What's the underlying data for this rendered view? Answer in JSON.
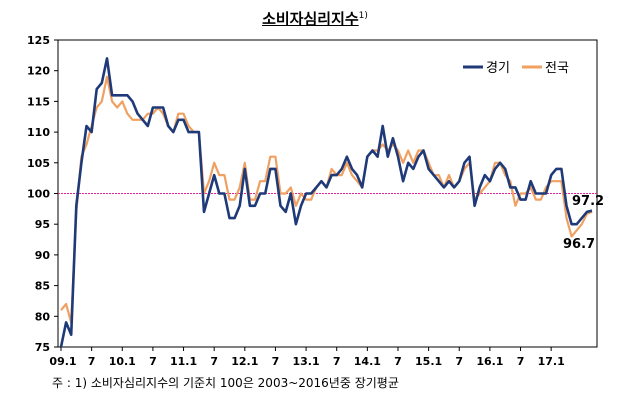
{
  "title": "소비자심리지수",
  "title_sup": "1)",
  "note": "주 : 1) 소비자심리지수의 기준치 100은 2003~2016년중 장기평균",
  "chart_data": {
    "type": "line",
    "title": "소비자심리지수",
    "xlabel": "",
    "ylabel": "",
    "ylim": [
      75,
      125
    ],
    "yticks": [
      75,
      80,
      85,
      90,
      95,
      100,
      105,
      110,
      115,
      120,
      125
    ],
    "xtick_labels": [
      "09.1",
      "7",
      "10.1",
      "7",
      "11.1",
      "7",
      "12.1",
      "7",
      "13.1",
      "7",
      "14.1",
      "7",
      "15.1",
      "7",
      "16.1",
      "7",
      "17.1"
    ],
    "x_start": "2009.01",
    "x_end": "2017.05",
    "reference_line": 100,
    "legend_position": "top-right",
    "annotations": [
      "97.2",
      "96.7"
    ],
    "series": [
      {
        "name": "경기",
        "color": "#1f3a78",
        "values": [
          75,
          79,
          77,
          98,
          105,
          111,
          110,
          117,
          118,
          122,
          116,
          116,
          116,
          116,
          115,
          113,
          112,
          111,
          114,
          114,
          114,
          111,
          110,
          112,
          112,
          110,
          110,
          110,
          97,
          100,
          103,
          100,
          100,
          96,
          96,
          98,
          104,
          98,
          98,
          100,
          100,
          104,
          104,
          98,
          97,
          100,
          95,
          98,
          100,
          100,
          101,
          102,
          101,
          103,
          103,
          104,
          106,
          104,
          103,
          101,
          106,
          107,
          106,
          111,
          106,
          109,
          106,
          102,
          105,
          104,
          106,
          107,
          104,
          103,
          102,
          101,
          102,
          101,
          102,
          105,
          106,
          98,
          101,
          103,
          102,
          104,
          105,
          104,
          101,
          101,
          99,
          99,
          102,
          100,
          100,
          100,
          103,
          104,
          104,
          98,
          95,
          95,
          96,
          97,
          97.2
        ]
      },
      {
        "name": "전국",
        "color": "#f0a060",
        "values": [
          81,
          82,
          79,
          97,
          106,
          108,
          111,
          114,
          115,
          119,
          115,
          114,
          115,
          113,
          112,
          112,
          112,
          113,
          113,
          114,
          113,
          111,
          110,
          113,
          113,
          111,
          110,
          110,
          100,
          102,
          105,
          103,
          103,
          99,
          99,
          101,
          105,
          99,
          99,
          102,
          102,
          106,
          106,
          100,
          100,
          101,
          98,
          100,
          99,
          99,
          101,
          102,
          101,
          104,
          103,
          103,
          105,
          103,
          102,
          101,
          106,
          107,
          107,
          108,
          107,
          108,
          107,
          105,
          107,
          105,
          107,
          107,
          105,
          103,
          103,
          101,
          103,
          101,
          102,
          104,
          105,
          99,
          100,
          101,
          102,
          105,
          105,
          103,
          102,
          98,
          100,
          100,
          101,
          99,
          99,
          101,
          102,
          102,
          102,
          96,
          93,
          94,
          95,
          96.7,
          97
        ]
      }
    ]
  }
}
